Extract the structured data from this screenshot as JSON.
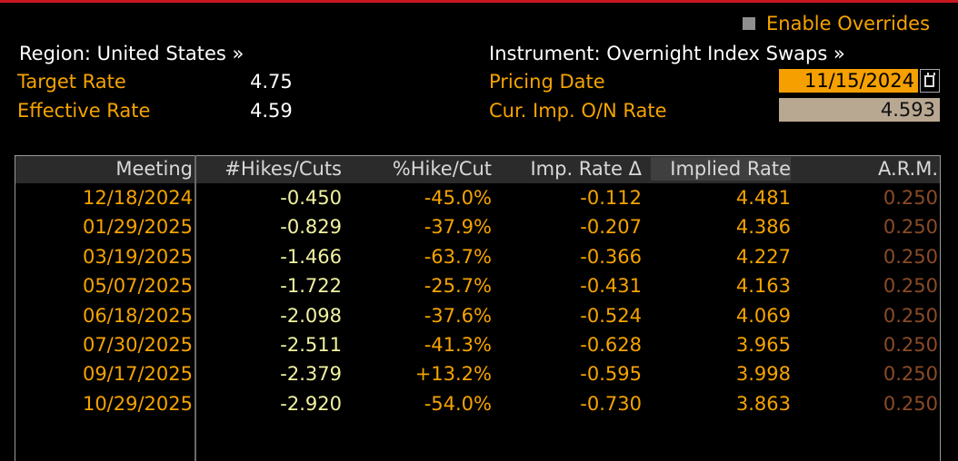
{
  "header": {
    "enable_overrides_label": "Enable Overrides",
    "enable_overrides_checked": false,
    "region_label": "Region: United States »",
    "instrument_label": "Instrument: Overnight Index Swaps »",
    "target_rate_label": "Target Rate",
    "target_rate_value": "4.75",
    "effective_rate_label": "Effective Rate",
    "effective_rate_value": "4.59",
    "pricing_date_label": "Pricing Date",
    "pricing_date_value": "11/15/2024",
    "cur_imp_label": "Cur. Imp. O/N Rate",
    "cur_imp_value": "4.593"
  },
  "table": {
    "columns": [
      "Meeting",
      "#Hikes/Cuts",
      "%Hike/Cut",
      "Imp. Rate Δ",
      "Implied Rate",
      "A.R.M."
    ],
    "rows": [
      [
        "12/18/2024",
        "-0.450",
        "-45.0%",
        "-0.112",
        "4.481",
        "0.250"
      ],
      [
        "01/29/2025",
        "-0.829",
        "-37.9%",
        "-0.207",
        "4.386",
        "0.250"
      ],
      [
        "03/19/2025",
        "-1.466",
        "-63.7%",
        "-0.366",
        "4.227",
        "0.250"
      ],
      [
        "05/07/2025",
        "-1.722",
        "-25.7%",
        "-0.431",
        "4.163",
        "0.250"
      ],
      [
        "06/18/2025",
        "-2.098",
        "-37.6%",
        "-0.524",
        "4.069",
        "0.250"
      ],
      [
        "07/30/2025",
        "-2.511",
        "-41.3%",
        "-0.628",
        "3.965",
        "0.250"
      ],
      [
        "09/17/2025",
        "-2.379",
        "+13.2%",
        "-0.595",
        "3.998",
        "0.250"
      ],
      [
        "10/29/2025",
        "-2.920",
        "-54.0%",
        "-0.730",
        "3.863",
        "0.250"
      ]
    ]
  },
  "colors": {
    "accent_orange": "#f5a300",
    "hike_value": "#f0f2a0",
    "arm_value": "#8a4a26",
    "date_field": "#f5a000",
    "rate_field": "#b9a891",
    "top_rule": "#c8171e"
  },
  "icons": {
    "checkbox": "checkbox-unchecked-icon",
    "calendar": "calendar-icon"
  }
}
